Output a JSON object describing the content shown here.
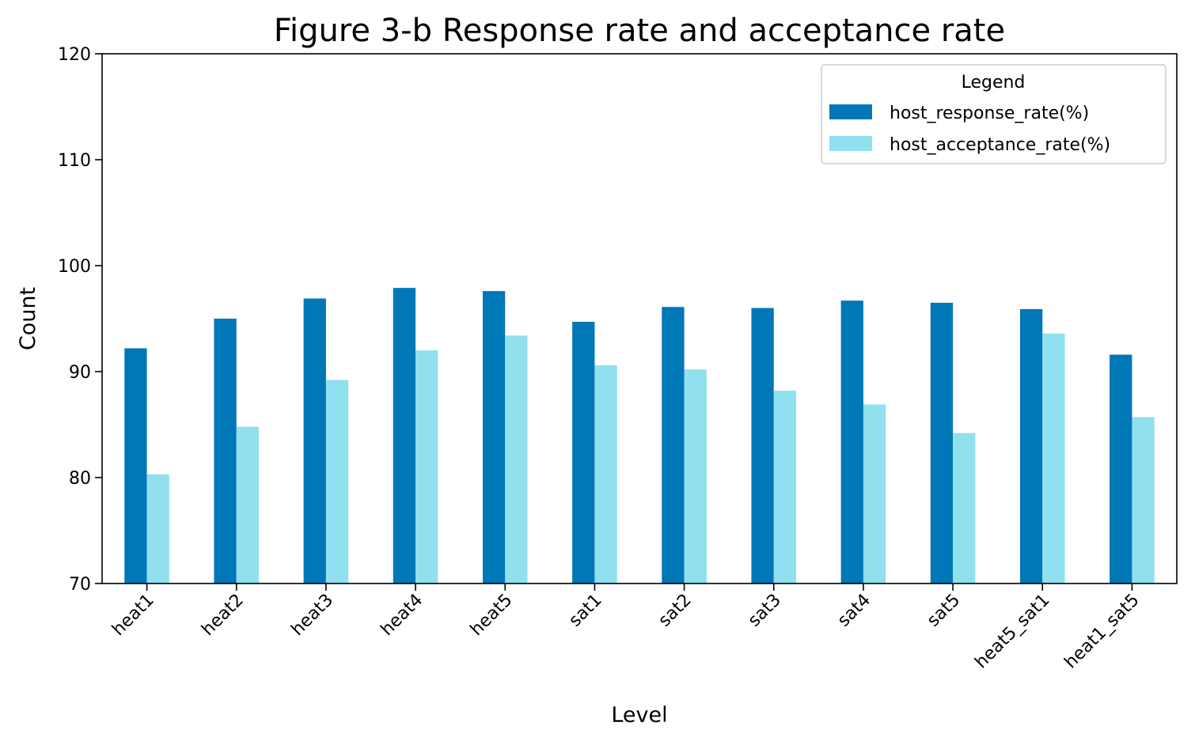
{
  "chart_data": {
    "type": "bar",
    "title": "Figure 3-b  Response rate and acceptance rate",
    "xlabel": "Level",
    "ylabel": "Count",
    "ylim": [
      70,
      120
    ],
    "yticks": [
      70,
      80,
      90,
      100,
      110,
      120
    ],
    "categories": [
      "heat1",
      "heat2",
      "heat3",
      "heat4",
      "heat5",
      "sat1",
      "sat2",
      "sat3",
      "sat4",
      "sat5",
      "heat5_sat1",
      "heat1_sat5"
    ],
    "series": [
      {
        "name": "host_response_rate(%)",
        "color": "#0077b6",
        "values": [
          92.2,
          95.0,
          96.9,
          97.9,
          97.6,
          94.7,
          96.1,
          96.0,
          96.7,
          96.5,
          95.9,
          91.6
        ]
      },
      {
        "name": "host_acceptance_rate(%)",
        "color": "#90e0ef",
        "values": [
          80.3,
          84.8,
          89.2,
          92.0,
          93.4,
          90.6,
          90.2,
          88.2,
          86.9,
          84.2,
          93.6,
          85.7
        ]
      }
    ],
    "grid": false,
    "legend": {
      "title": "Legend",
      "placement": "top-right"
    }
  }
}
